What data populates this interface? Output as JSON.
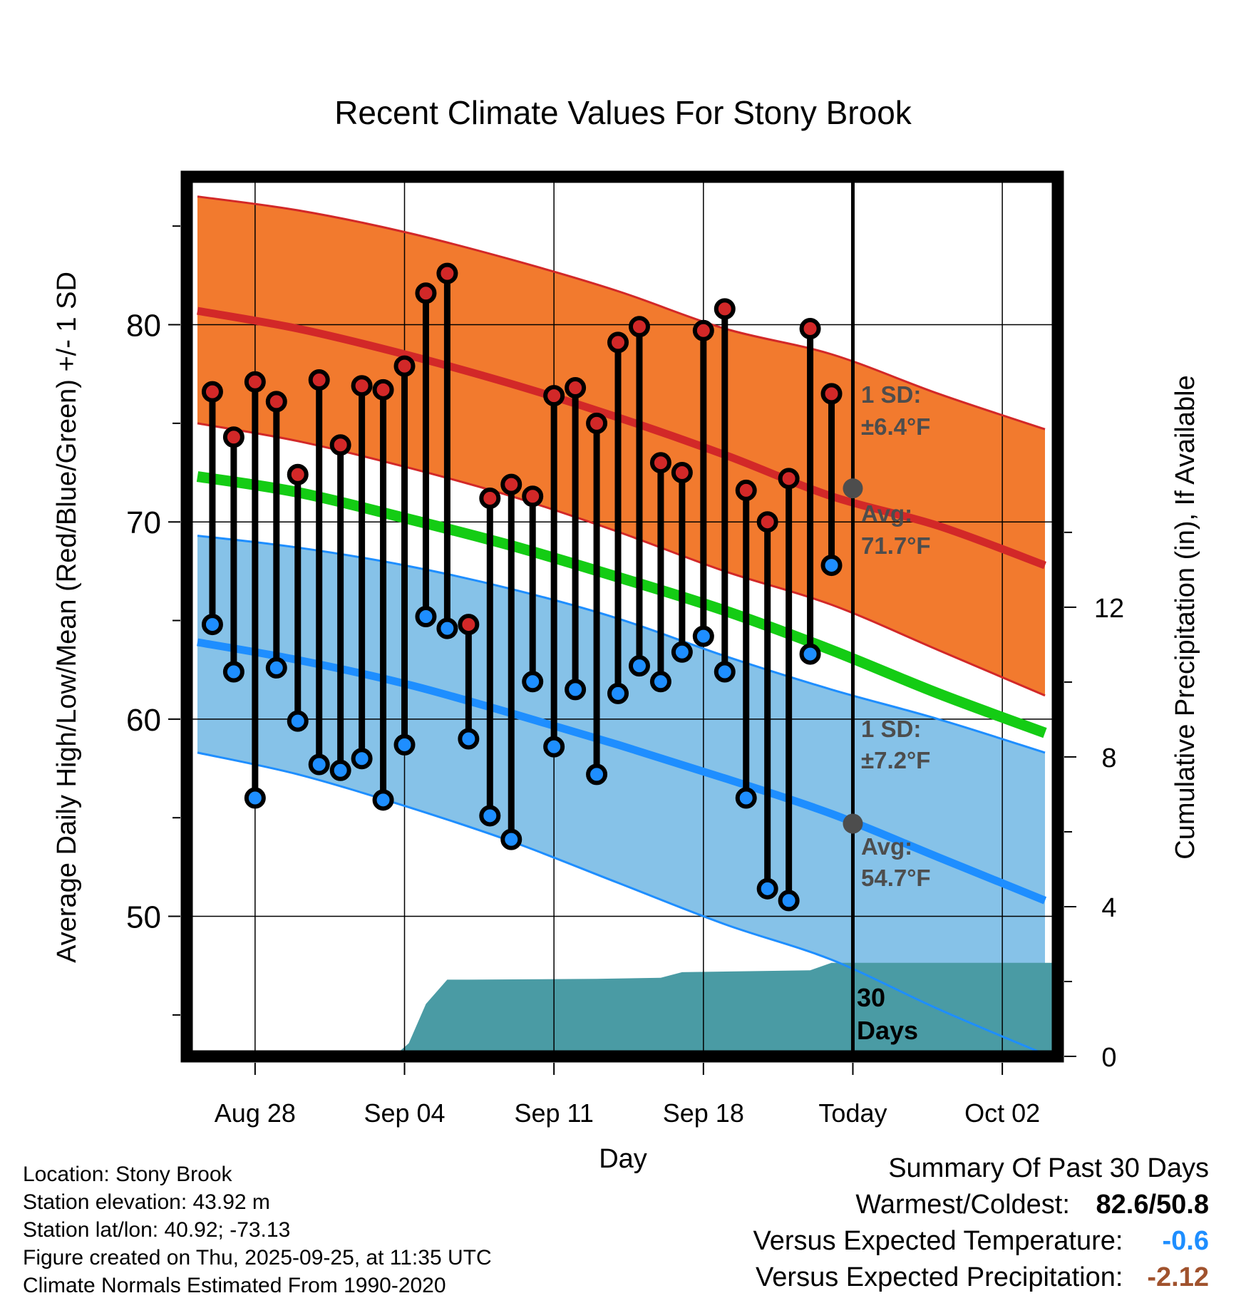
{
  "chart_data": {
    "type": "line",
    "title": "Recent Climate Values For Stony Brook",
    "xlabel": "Day",
    "ylabel": "Average Daily High/Low/Mean (Red/Blue/Green) +/- 1 SD",
    "y2label": "Cumulative Precipitation (in), If Available",
    "x_day_range": [
      -3.2,
      37.6
    ],
    "ylim": [
      42.9,
      87.5
    ],
    "y2lim": [
      0,
      23.5
    ],
    "x_ticks": [
      {
        "day": 0,
        "label": "Aug 28"
      },
      {
        "day": 7,
        "label": "Sep 04"
      },
      {
        "day": 14,
        "label": "Sep 11"
      },
      {
        "day": 21,
        "label": "Sep 18"
      },
      {
        "day": 28,
        "label": "Today"
      },
      {
        "day": 35,
        "label": "Oct 02"
      }
    ],
    "y_ticks": [
      50,
      60,
      70,
      80
    ],
    "y2_ticks": [
      0,
      4,
      8,
      12
    ],
    "today_day": 28,
    "normal_curves_days": [
      -2.7,
      2,
      7,
      12,
      17,
      22,
      27,
      32,
      37
    ],
    "normal_high": [
      80.7,
      79.8,
      78.5,
      77.0,
      75.3,
      73.4,
      71.3,
      69.8,
      67.8
    ],
    "normal_high_plus_sd": [
      86.5,
      85.8,
      84.7,
      83.3,
      81.7,
      79.8,
      78.5,
      76.5,
      74.7
    ],
    "normal_high_minus_sd": [
      75.0,
      74.1,
      72.8,
      71.3,
      69.5,
      67.5,
      65.8,
      63.5,
      61.2
    ],
    "normal_mean": [
      72.3,
      71.5,
      70.2,
      68.8,
      67.2,
      65.5,
      63.5,
      61.3,
      59.3
    ],
    "normal_low": [
      63.9,
      63.0,
      61.8,
      60.3,
      58.7,
      57.0,
      55.2,
      53.0,
      50.8
    ],
    "normal_low_plus_sd": [
      69.3,
      68.7,
      67.8,
      66.6,
      65.1,
      63.2,
      61.5,
      60.0,
      58.3
    ],
    "normal_low_minus_sd": [
      58.3,
      57.2,
      55.6,
      53.8,
      51.7,
      49.6,
      47.8,
      45.3,
      43.0
    ],
    "observed_days": [
      -2,
      -1,
      0,
      1,
      2,
      3,
      4,
      5,
      6,
      7,
      8,
      9,
      10,
      11,
      12,
      13,
      14,
      15,
      16,
      17,
      18,
      19,
      20,
      21,
      22,
      23,
      24,
      25,
      26,
      27
    ],
    "observed_high": [
      76.6,
      74.3,
      77.1,
      76.1,
      72.4,
      77.2,
      73.9,
      76.9,
      76.7,
      77.9,
      81.6,
      82.6,
      64.8,
      71.2,
      71.9,
      71.3,
      76.4,
      76.8,
      75.0,
      79.1,
      79.9,
      73.0,
      72.5,
      79.7,
      80.8,
      71.6,
      70.0,
      72.2,
      79.8,
      76.5
    ],
    "observed_low": [
      64.8,
      62.4,
      56.0,
      62.6,
      59.9,
      57.7,
      57.4,
      58.0,
      55.9,
      58.7,
      65.2,
      64.6,
      59.0,
      55.1,
      53.9,
      61.9,
      58.6,
      61.5,
      57.2,
      61.3,
      62.7,
      61.9,
      63.4,
      64.2,
      62.4,
      56.0,
      51.4,
      50.8,
      63.3,
      67.8
    ],
    "precip_days": [
      -3,
      6.5,
      7.2,
      8.0,
      9.0,
      10.0,
      16.0,
      19.0,
      20.0,
      26.0,
      27.0,
      37.6
    ],
    "precip_cumulative": [
      0,
      0,
      0.35,
      1.4,
      2.05,
      2.05,
      2.07,
      2.1,
      2.25,
      2.3,
      2.5,
      2.5
    ],
    "high_sd_label": "1 SD:",
    "high_sd_value": "±6.4°F",
    "high_avg_label": "Avg:",
    "high_avg_value": "71.7°F",
    "high_avg_today": 71.7,
    "low_sd_label": "1 SD:",
    "low_sd_value": "±7.2°F",
    "low_avg_label": "Avg:",
    "low_avg_value": "54.7°F",
    "low_avg_today": 54.7,
    "days_label_1": "30",
    "days_label_2": "Days",
    "colors": {
      "high_band": "#F27A2E",
      "high_line": "#D22828",
      "low_band": "#86C2E8",
      "low_line": "#1E8EFF",
      "mean_line": "#14CC14",
      "precip": "#4A9BA4",
      "annotation": "#4d4d4d",
      "high_marker": "#D22828",
      "low_marker": "#1E8EFF"
    }
  },
  "info": {
    "location": "Location: Stony Brook",
    "elevation": "Station elevation: 43.92 m",
    "latlon": "Station lat/lon: 40.92; -73.13",
    "created": "Figure created on Thu, 2025-09-25, at 11:35 UTC",
    "normals": "Climate Normals Estimated From 1990-2020"
  },
  "summary": {
    "title": "Summary Of Past 30 Days",
    "warm_cold_label": "Warmest/Coldest:",
    "warm_value": "82.6",
    "separator": "/",
    "cold_value": "50.8",
    "temp_label": "Versus Expected Temperature:",
    "temp_value": "-0.6",
    "temp_color": "#1E8EFF",
    "precip_label": "Versus Expected Precipitation:",
    "precip_value": "-2.12",
    "precip_color": "#A0522D"
  }
}
